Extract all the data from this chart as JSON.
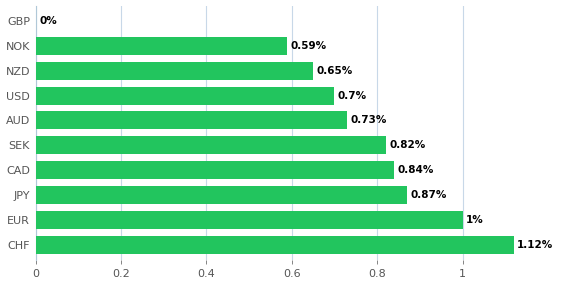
{
  "categories": [
    "GBP",
    "NOK",
    "NZD",
    "USD",
    "AUD",
    "SEK",
    "CAD",
    "JPY",
    "EUR",
    "CHF"
  ],
  "values": [
    0.0,
    0.59,
    0.65,
    0.7,
    0.73,
    0.82,
    0.84,
    0.87,
    1.0,
    1.12
  ],
  "labels": [
    "0%",
    "0.59%",
    "0.65%",
    "0.7%",
    "0.73%",
    "0.82%",
    "0.84%",
    "0.87%",
    "1%",
    "1.12%"
  ],
  "bar_color": "#22c55e",
  "background_color": "#ffffff",
  "xlim": [
    0,
    1.18
  ],
  "xticks": [
    0,
    0.2,
    0.4,
    0.6,
    0.8,
    1.0
  ],
  "grid_color": "#c8d8e8",
  "label_fontsize": 7.5,
  "tick_fontsize": 8,
  "bar_height": 0.72,
  "spine_color": "#b0c8d8"
}
